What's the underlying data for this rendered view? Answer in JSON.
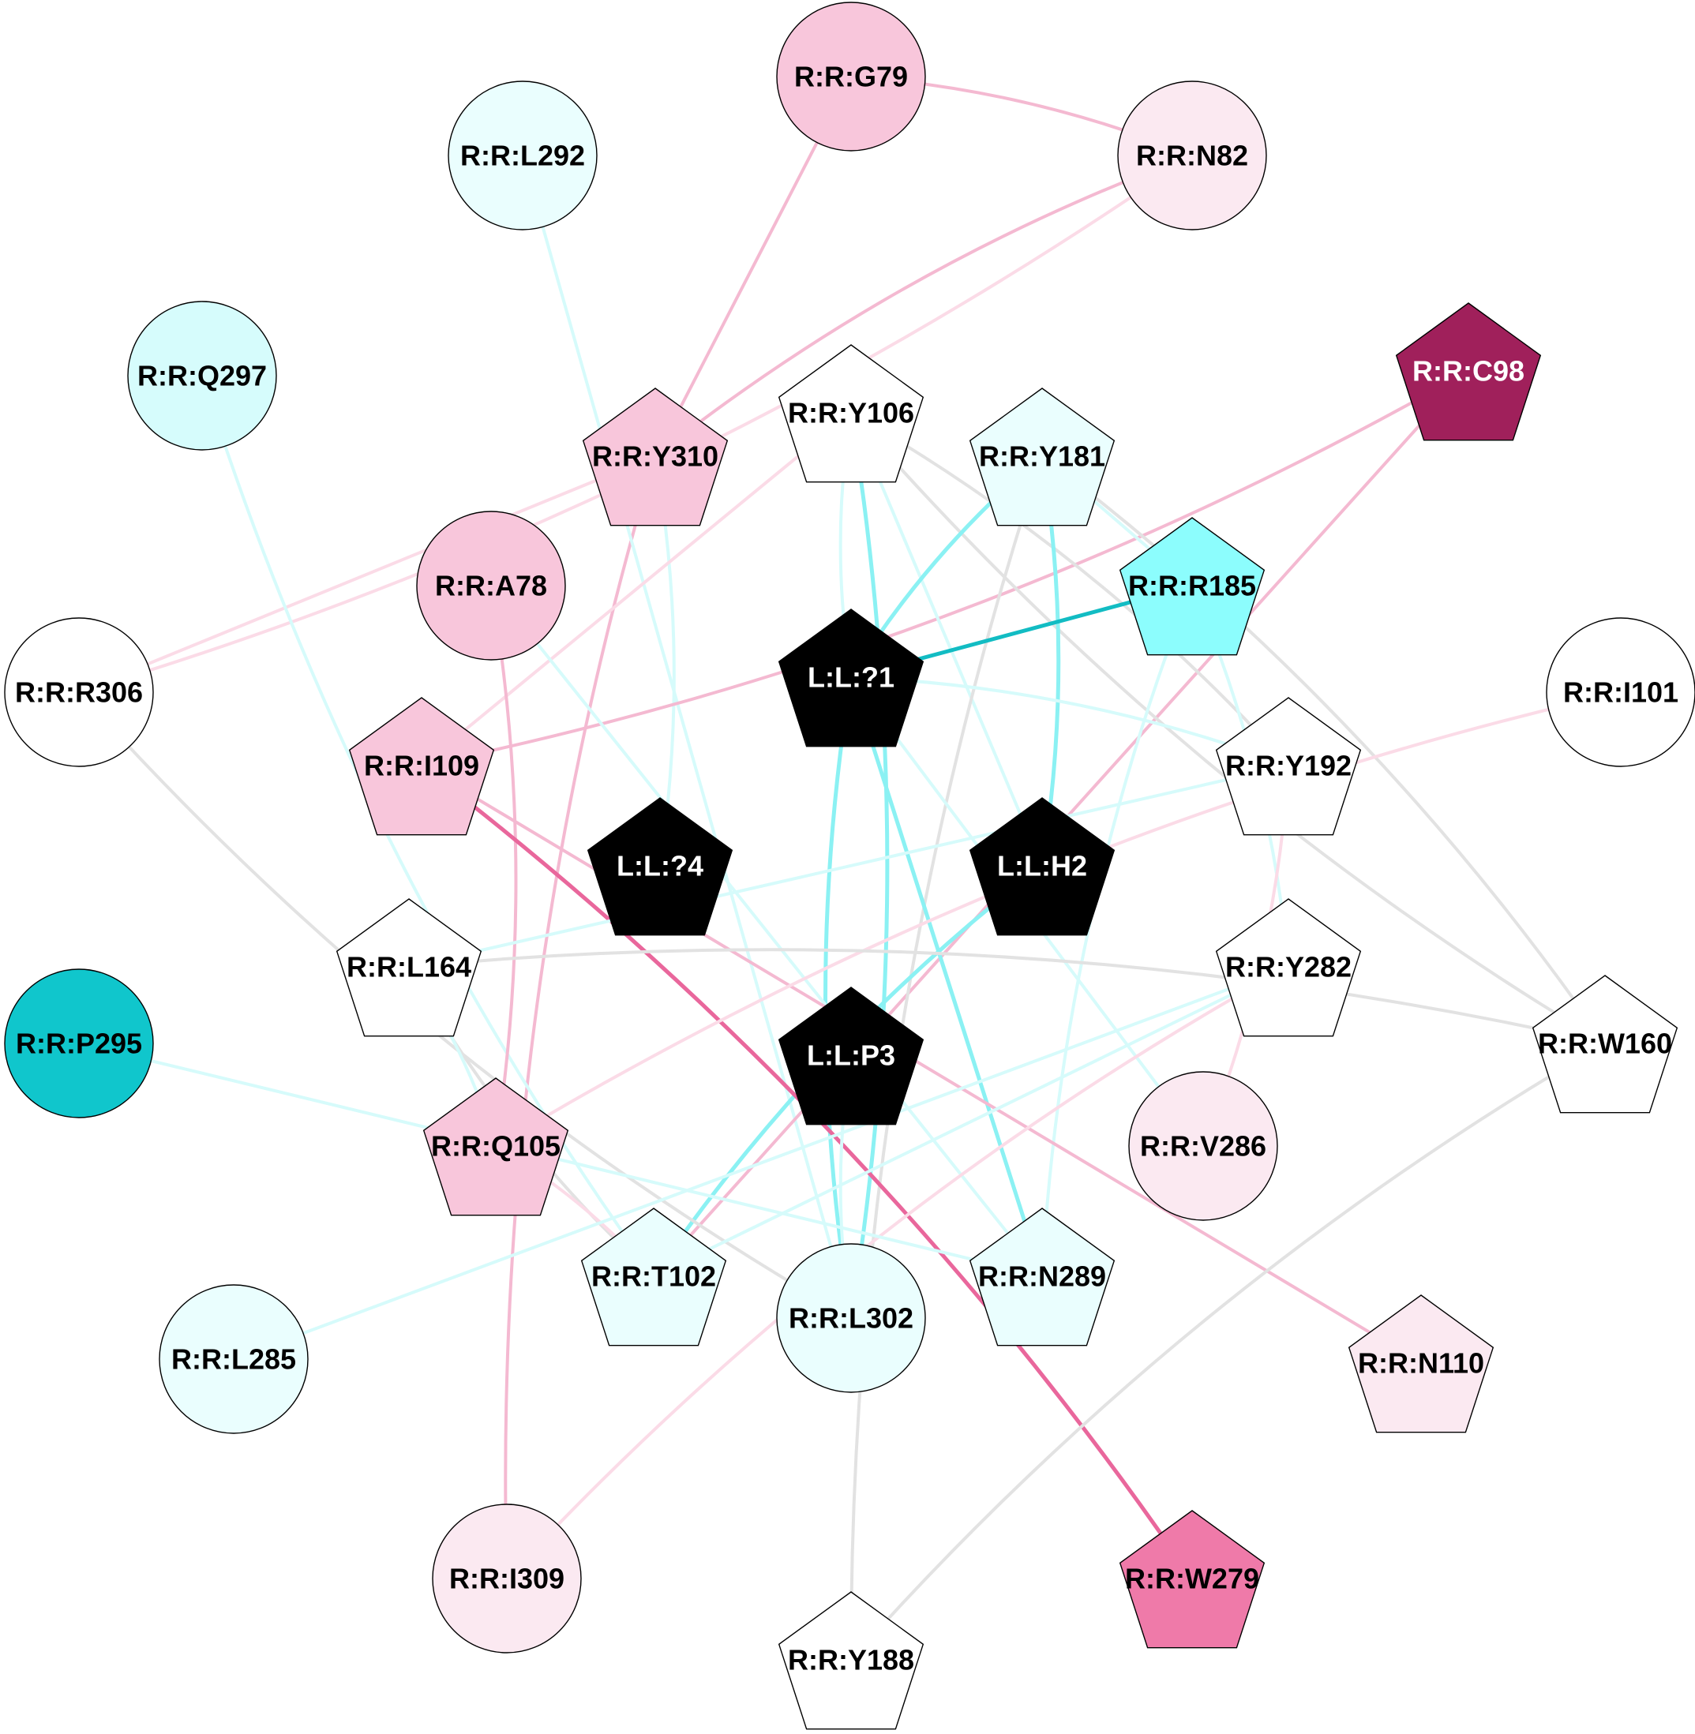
{
  "colors": {
    "white": "#ffffff",
    "black": "#000000",
    "pale_cyan": "#eafefe",
    "light_cyan": "#d6fcfc",
    "cyan": "#8cfdfd",
    "teal": "#10c6cc",
    "pale_pink": "#fbe9f1",
    "pink": "#f8c6db",
    "hot_pink": "#ef7aa9",
    "magenta": "#a0205b",
    "edge_gray": "#e2e2e2",
    "edge_cyan": "#8bf1f3",
    "edge_light_cyan": "#d6fbfb",
    "edge_teal": "#12bcc3",
    "edge_pink": "#f4b9d1",
    "edge_light_pink": "#fbdbe7",
    "edge_hot_pink": "#e9679c"
  },
  "nodes": [
    {
      "id": "G79",
      "label": "R:R:G79",
      "shape": "circle",
      "fill": "pink",
      "text": "black"
    },
    {
      "id": "L292",
      "label": "R:R:L292",
      "shape": "circle",
      "fill": "pale_cyan",
      "text": "black"
    },
    {
      "id": "N82",
      "label": "R:R:N82",
      "shape": "circle",
      "fill": "pale_pink",
      "text": "black"
    },
    {
      "id": "Q297",
      "label": "R:R:Q297",
      "shape": "circle",
      "fill": "light_cyan",
      "text": "black"
    },
    {
      "id": "C98",
      "label": "R:R:C98",
      "shape": "pentagon",
      "fill": "magenta",
      "text": "white"
    },
    {
      "id": "Y106",
      "label": "R:R:Y106",
      "shape": "pentagon",
      "fill": "white",
      "text": "black"
    },
    {
      "id": "Y310",
      "label": "R:R:Y310",
      "shape": "pentagon",
      "fill": "pink",
      "text": "black"
    },
    {
      "id": "Y181",
      "label": "R:R:Y181",
      "shape": "pentagon",
      "fill": "pale_cyan",
      "text": "black"
    },
    {
      "id": "A78",
      "label": "R:R:A78",
      "shape": "circle",
      "fill": "pink",
      "text": "black"
    },
    {
      "id": "R185",
      "label": "R:R:R185",
      "shape": "pentagon",
      "fill": "cyan",
      "text": "black"
    },
    {
      "id": "L1",
      "label": "L:L:?1",
      "shape": "pentagon",
      "fill": "black",
      "text": "white"
    },
    {
      "id": "R306",
      "label": "R:R:R306",
      "shape": "circle",
      "fill": "white",
      "text": "black"
    },
    {
      "id": "I101",
      "label": "R:R:I101",
      "shape": "circle",
      "fill": "white",
      "text": "black"
    },
    {
      "id": "I109",
      "label": "R:R:I109",
      "shape": "pentagon",
      "fill": "pink",
      "text": "black"
    },
    {
      "id": "Y192",
      "label": "R:R:Y192",
      "shape": "pentagon",
      "fill": "white",
      "text": "black"
    },
    {
      "id": "L4",
      "label": "L:L:?4",
      "shape": "pentagon",
      "fill": "black",
      "text": "white"
    },
    {
      "id": "H2",
      "label": "L:L:H2",
      "shape": "pentagon",
      "fill": "black",
      "text": "white"
    },
    {
      "id": "L164",
      "label": "R:R:L164",
      "shape": "pentagon",
      "fill": "white",
      "text": "black"
    },
    {
      "id": "Y282",
      "label": "R:R:Y282",
      "shape": "pentagon",
      "fill": "white",
      "text": "black"
    },
    {
      "id": "P295",
      "label": "R:R:P295",
      "shape": "circle",
      "fill": "teal",
      "text": "black"
    },
    {
      "id": "W160",
      "label": "R:R:W160",
      "shape": "pentagon",
      "fill": "white",
      "text": "black"
    },
    {
      "id": "P3",
      "label": "L:L:P3",
      "shape": "pentagon",
      "fill": "black",
      "text": "white"
    },
    {
      "id": "Q105",
      "label": "R:R:Q105",
      "shape": "pentagon",
      "fill": "pink",
      "text": "black"
    },
    {
      "id": "V286",
      "label": "R:R:V286",
      "shape": "circle",
      "fill": "pale_pink",
      "text": "black"
    },
    {
      "id": "T102",
      "label": "R:R:T102",
      "shape": "pentagon",
      "fill": "pale_cyan",
      "text": "black"
    },
    {
      "id": "L302",
      "label": "R:R:L302",
      "shape": "circle",
      "fill": "pale_cyan",
      "text": "black"
    },
    {
      "id": "N289",
      "label": "R:R:N289",
      "shape": "pentagon",
      "fill": "pale_cyan",
      "text": "black"
    },
    {
      "id": "N110",
      "label": "R:R:N110",
      "shape": "pentagon",
      "fill": "pale_pink",
      "text": "black"
    },
    {
      "id": "L285",
      "label": "R:R:L285",
      "shape": "circle",
      "fill": "pale_cyan",
      "text": "black"
    },
    {
      "id": "I309",
      "label": "R:R:I309",
      "shape": "circle",
      "fill": "pale_pink",
      "text": "black"
    },
    {
      "id": "W279",
      "label": "R:R:W279",
      "shape": "pentagon",
      "fill": "hot_pink",
      "text": "black"
    },
    {
      "id": "Y188",
      "label": "R:R:Y188",
      "shape": "pentagon",
      "fill": "white",
      "text": "black"
    }
  ],
  "edges": [
    {
      "from": "G79",
      "to": "N82",
      "color": "edge_pink"
    },
    {
      "from": "G79",
      "to": "Y310",
      "color": "edge_pink"
    },
    {
      "from": "N82",
      "to": "Y310",
      "color": "edge_pink"
    },
    {
      "from": "N82",
      "to": "R306",
      "color": "edge_light_pink"
    },
    {
      "from": "Y310",
      "to": "R306",
      "color": "edge_light_pink"
    },
    {
      "from": "Y310",
      "to": "I309",
      "color": "edge_pink"
    },
    {
      "from": "Y310",
      "to": "L4",
      "color": "edge_light_cyan"
    },
    {
      "from": "L292",
      "to": "L302",
      "color": "edge_light_cyan"
    },
    {
      "from": "Q297",
      "to": "T102",
      "color": "edge_light_cyan"
    },
    {
      "from": "C98",
      "to": "I109",
      "color": "edge_pink"
    },
    {
      "from": "C98",
      "to": "T102",
      "color": "edge_pink"
    },
    {
      "from": "Y106",
      "to": "L1",
      "color": "edge_light_cyan"
    },
    {
      "from": "Y106",
      "to": "L302",
      "color": "edge_cyan"
    },
    {
      "from": "Y106",
      "to": "H2",
      "color": "edge_light_cyan"
    },
    {
      "from": "Y106",
      "to": "W160",
      "color": "edge_gray"
    },
    {
      "from": "Y106",
      "to": "Y192",
      "color": "edge_gray"
    },
    {
      "from": "Y106",
      "to": "I109",
      "color": "edge_light_pink"
    },
    {
      "from": "Y181",
      "to": "L1",
      "color": "edge_cyan"
    },
    {
      "from": "Y181",
      "to": "H2",
      "color": "edge_cyan"
    },
    {
      "from": "Y181",
      "to": "R185",
      "color": "edge_light_cyan"
    },
    {
      "from": "Y181",
      "to": "Y188",
      "color": "edge_gray"
    },
    {
      "from": "Y181",
      "to": "W160",
      "color": "edge_gray"
    },
    {
      "from": "R185",
      "to": "L1",
      "color": "edge_teal"
    },
    {
      "from": "R185",
      "to": "N289",
      "color": "edge_light_cyan"
    },
    {
      "from": "R185",
      "to": "Y282",
      "color": "edge_light_cyan"
    },
    {
      "from": "L1",
      "to": "N289",
      "color": "edge_cyan"
    },
    {
      "from": "L1",
      "to": "L302",
      "color": "edge_cyan"
    },
    {
      "from": "L1",
      "to": "Y192",
      "color": "edge_light_cyan"
    },
    {
      "from": "L1",
      "to": "V286",
      "color": "edge_light_cyan"
    },
    {
      "from": "H2",
      "to": "T102",
      "color": "edge_cyan"
    },
    {
      "from": "A78",
      "to": "Q105",
      "color": "edge_pink"
    },
    {
      "from": "A78",
      "to": "N289",
      "color": "edge_light_cyan"
    },
    {
      "from": "R306",
      "to": "L302",
      "color": "edge_gray"
    },
    {
      "from": "I109",
      "to": "W279",
      "color": "edge_hot_pink"
    },
    {
      "from": "I109",
      "to": "N110",
      "color": "edge_pink"
    },
    {
      "from": "I101",
      "to": "Q105",
      "color": "edge_light_pink"
    },
    {
      "from": "L164",
      "to": "W160",
      "color": "edge_gray"
    },
    {
      "from": "L164",
      "to": "Y192",
      "color": "edge_light_cyan"
    },
    {
      "from": "L164",
      "to": "T102",
      "color": "edge_gray"
    },
    {
      "from": "L164",
      "to": "Q105",
      "color": "edge_light_cyan"
    },
    {
      "from": "Y282",
      "to": "T102",
      "color": "edge_light_cyan"
    },
    {
      "from": "Y282",
      "to": "I309",
      "color": "edge_light_pink"
    },
    {
      "from": "Y192",
      "to": "V286",
      "color": "edge_light_pink"
    },
    {
      "from": "P295",
      "to": "N289",
      "color": "edge_light_cyan"
    },
    {
      "from": "W160",
      "to": "Y188",
      "color": "edge_gray"
    },
    {
      "from": "Q105",
      "to": "T102",
      "color": "edge_light_pink"
    },
    {
      "from": "L285",
      "to": "Y282",
      "color": "edge_light_cyan"
    },
    {
      "from": "P3",
      "to": "L302",
      "color": "edge_light_cyan"
    }
  ]
}
